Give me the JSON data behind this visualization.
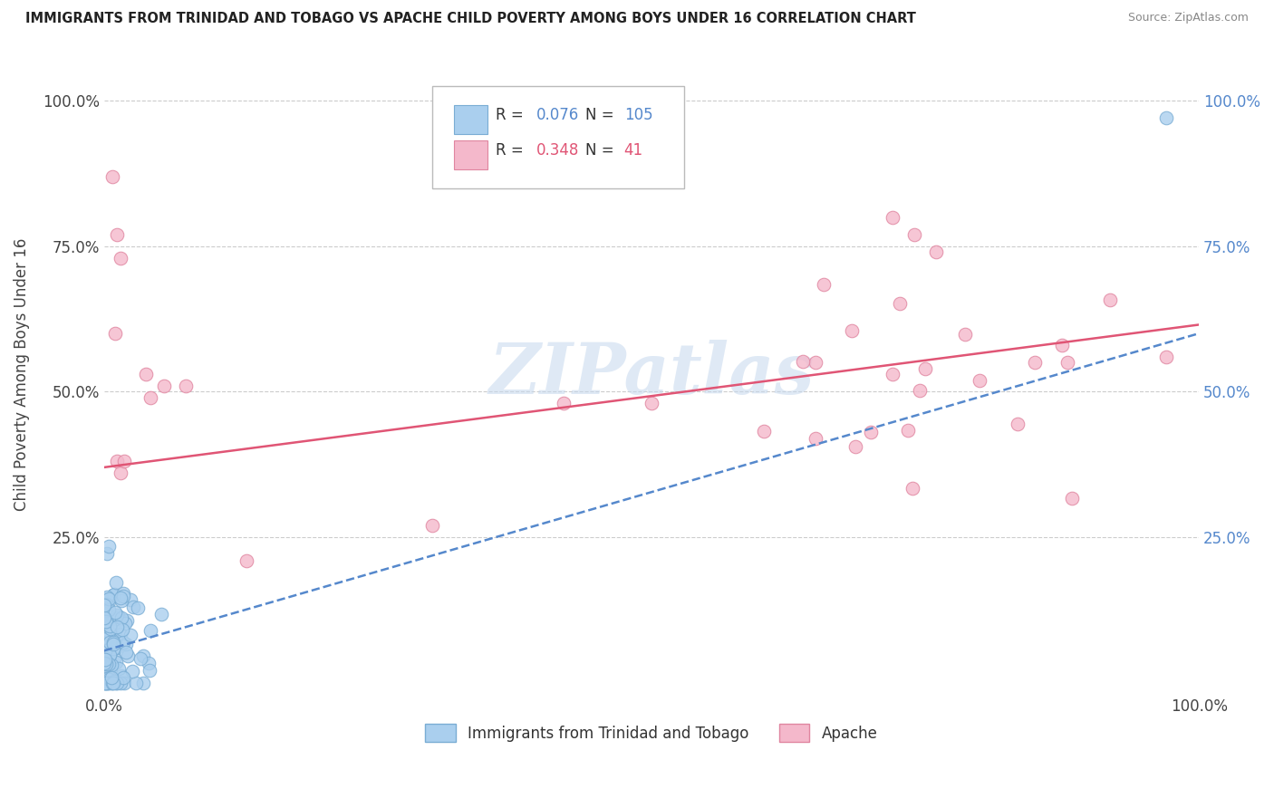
{
  "title": "IMMIGRANTS FROM TRINIDAD AND TOBAGO VS APACHE CHILD POVERTY AMONG BOYS UNDER 16 CORRELATION CHART",
  "source": "Source: ZipAtlas.com",
  "ylabel": "Child Poverty Among Boys Under 16",
  "xlim": [
    0,
    1.0
  ],
  "ylim": [
    -0.02,
    1.08
  ],
  "blue_color": "#aacfee",
  "pink_color": "#f4b8cb",
  "blue_edge": "#7aadd4",
  "pink_edge": "#e085a0",
  "blue_line_color": "#5588cc",
  "pink_line_color": "#e05575",
  "R_blue": 0.076,
  "N_blue": 105,
  "R_pink": 0.348,
  "N_pink": 41,
  "watermark": "ZIPatlas",
  "legend_label_blue": "Immigrants from Trinidad and Tobago",
  "legend_label_pink": "Apache",
  "blue_trend_y0": 0.055,
  "blue_trend_y1": 0.6,
  "pink_trend_y0": 0.37,
  "pink_trend_y1": 0.615
}
